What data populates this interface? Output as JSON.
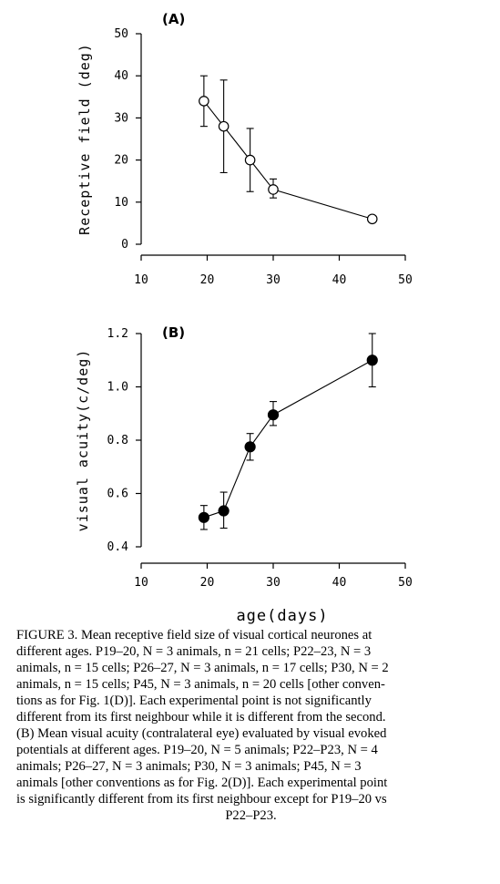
{
  "chart_data": [
    {
      "type": "line",
      "panel_label": "(A)",
      "xlabel": "",
      "ylabel": "Receptive field (deg)",
      "xlim": [
        10,
        50
      ],
      "ylim": [
        0,
        50
      ],
      "xticks": [
        "10",
        "20",
        "30",
        "40",
        "50"
      ],
      "yticks": [
        "0",
        "10",
        "20",
        "30",
        "40",
        "50"
      ],
      "marker": "open-circle",
      "x": [
        19.5,
        22.5,
        26.5,
        30,
        45
      ],
      "y": [
        34,
        28,
        20,
        13,
        6
      ],
      "err_low": [
        28,
        17,
        12.5,
        11,
        6
      ],
      "err_high": [
        40,
        39,
        27.5,
        15.5,
        6
      ]
    },
    {
      "type": "line",
      "panel_label": "(B)",
      "xlabel": "age(days)",
      "ylabel": "visual acuity(c/deg)",
      "xlim": [
        10,
        50
      ],
      "ylim": [
        0.4,
        1.2
      ],
      "xticks": [
        "10",
        "20",
        "30",
        "40",
        "50"
      ],
      "yticks": [
        "0.4",
        "0.6",
        "0.8",
        "1.0",
        "1.2"
      ],
      "marker": "filled-circle",
      "x": [
        19.5,
        22.5,
        26.5,
        30,
        45
      ],
      "y": [
        0.51,
        0.535,
        0.775,
        0.895,
        1.1
      ],
      "err_low": [
        0.465,
        0.47,
        0.725,
        0.855,
        1.0
      ],
      "err_high": [
        0.555,
        0.605,
        0.825,
        0.945,
        1.2
      ]
    }
  ],
  "caption": {
    "lines": [
      "FIGURE 3. Mean receptive field size of visual cortical neurones at",
      "different ages. P19–20, N = 3 animals, n = 21 cells; P22–23, N = 3",
      "animals, n = 15 cells; P26–27, N = 3 animals, n = 17 cells; P30, N = 2",
      "animals, n = 15 cells; P45, N = 3 animals, n = 20 cells [other conven-",
      "tions as for Fig. 1(D)]. Each experimental point is not significantly",
      "different from its first neighbour while it is different from the second.",
      "(B) Mean visual acuity (contralateral eye) evaluated by visual evoked",
      "potentials at different ages. P19–20, N = 5 animals; P22–P23, N = 4",
      "animals; P26–27, N = 3 animals; P30, N = 3 animals; P45, N = 3",
      "animals [other conventions as for Fig. 2(D)]. Each experimental point",
      "is significantly different from its first neighbour except for P19–20 vs",
      "P22–P23."
    ]
  }
}
